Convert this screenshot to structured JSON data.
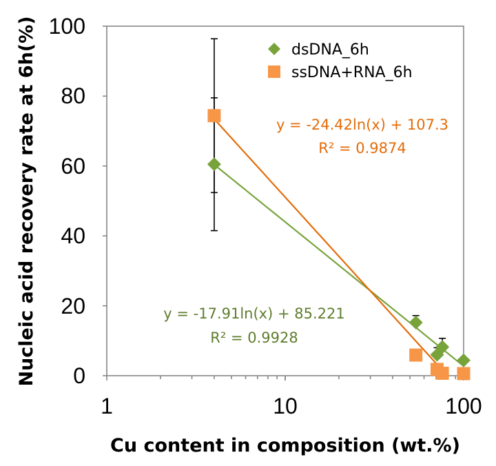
{
  "chart_data": {
    "type": "scatter",
    "title": "",
    "xlabel": "Cu content in composition (wt.%)",
    "ylabel": "Nucleic acid recovery rate at 6h(%)",
    "x_scale": "log",
    "xlim": [
      1,
      100
    ],
    "ylim": [
      0,
      100
    ],
    "x_ticks": [
      "1",
      "10",
      "100"
    ],
    "y_ticks": [
      "0",
      "20",
      "40",
      "60",
      "80",
      "100"
    ],
    "grid": false,
    "legend_position": "top-right",
    "series": [
      {
        "name": "dsDNA_6h",
        "marker": "diamond",
        "color": "#77a33a",
        "x": [
          4,
          54,
          71,
          76,
          100
        ],
        "y": [
          60.5,
          15.2,
          6.0,
          8.2,
          4.4
        ],
        "error_minus": [
          19,
          0,
          0,
          0,
          0
        ],
        "error_plus": [
          19,
          2.0,
          2.0,
          2.5,
          0
        ],
        "trendline": {
          "a": -17.91,
          "b": 85.221,
          "x_range": [
            4,
            100
          ]
        },
        "equation": "y = -17.91ln(x) + 85.221",
        "r_squared": "R² = 0.9928",
        "eq_color": "#5e7d2e"
      },
      {
        "name": "ssDNA+RNA_6h",
        "marker": "square",
        "color": "#f79646",
        "x": [
          4,
          54,
          71,
          76,
          100
        ],
        "y": [
          74.4,
          5.9,
          1.8,
          0.7,
          0.6
        ],
        "error_minus": [
          22,
          0,
          0,
          0,
          0
        ],
        "error_plus": [
          22,
          0,
          0,
          0,
          0
        ],
        "trendline": {
          "a": -24.42,
          "b": 107.3,
          "x_range": [
            4,
            76
          ]
        },
        "equation": "y = -24.42ln(x) + 107.3",
        "r_squared": "R² = 0.9874",
        "eq_color": "#e36c09"
      }
    ]
  }
}
